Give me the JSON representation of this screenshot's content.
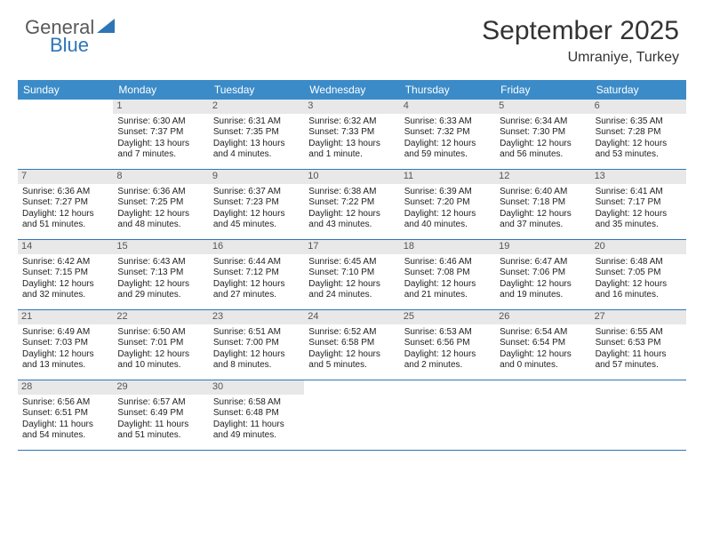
{
  "logo": {
    "general": "General",
    "blue": "Blue"
  },
  "title": "September 2025",
  "location": "Umraniye, Turkey",
  "dow": [
    "Sunday",
    "Monday",
    "Tuesday",
    "Wednesday",
    "Thursday",
    "Friday",
    "Saturday"
  ],
  "colors": {
    "header_bar": "#3b8bc8",
    "week_divider": "#2e75b6",
    "daynum_bg": "#e8e8e8",
    "logo_gray": "#58595b",
    "logo_blue": "#2e75b6"
  },
  "weeks": [
    [
      {
        "n": "",
        "sr": "",
        "ss": "",
        "dl": ""
      },
      {
        "n": "1",
        "sr": "Sunrise: 6:30 AM",
        "ss": "Sunset: 7:37 PM",
        "dl": "Daylight: 13 hours and 7 minutes."
      },
      {
        "n": "2",
        "sr": "Sunrise: 6:31 AM",
        "ss": "Sunset: 7:35 PM",
        "dl": "Daylight: 13 hours and 4 minutes."
      },
      {
        "n": "3",
        "sr": "Sunrise: 6:32 AM",
        "ss": "Sunset: 7:33 PM",
        "dl": "Daylight: 13 hours and 1 minute."
      },
      {
        "n": "4",
        "sr": "Sunrise: 6:33 AM",
        "ss": "Sunset: 7:32 PM",
        "dl": "Daylight: 12 hours and 59 minutes."
      },
      {
        "n": "5",
        "sr": "Sunrise: 6:34 AM",
        "ss": "Sunset: 7:30 PM",
        "dl": "Daylight: 12 hours and 56 minutes."
      },
      {
        "n": "6",
        "sr": "Sunrise: 6:35 AM",
        "ss": "Sunset: 7:28 PM",
        "dl": "Daylight: 12 hours and 53 minutes."
      }
    ],
    [
      {
        "n": "7",
        "sr": "Sunrise: 6:36 AM",
        "ss": "Sunset: 7:27 PM",
        "dl": "Daylight: 12 hours and 51 minutes."
      },
      {
        "n": "8",
        "sr": "Sunrise: 6:36 AM",
        "ss": "Sunset: 7:25 PM",
        "dl": "Daylight: 12 hours and 48 minutes."
      },
      {
        "n": "9",
        "sr": "Sunrise: 6:37 AM",
        "ss": "Sunset: 7:23 PM",
        "dl": "Daylight: 12 hours and 45 minutes."
      },
      {
        "n": "10",
        "sr": "Sunrise: 6:38 AM",
        "ss": "Sunset: 7:22 PM",
        "dl": "Daylight: 12 hours and 43 minutes."
      },
      {
        "n": "11",
        "sr": "Sunrise: 6:39 AM",
        "ss": "Sunset: 7:20 PM",
        "dl": "Daylight: 12 hours and 40 minutes."
      },
      {
        "n": "12",
        "sr": "Sunrise: 6:40 AM",
        "ss": "Sunset: 7:18 PM",
        "dl": "Daylight: 12 hours and 37 minutes."
      },
      {
        "n": "13",
        "sr": "Sunrise: 6:41 AM",
        "ss": "Sunset: 7:17 PM",
        "dl": "Daylight: 12 hours and 35 minutes."
      }
    ],
    [
      {
        "n": "14",
        "sr": "Sunrise: 6:42 AM",
        "ss": "Sunset: 7:15 PM",
        "dl": "Daylight: 12 hours and 32 minutes."
      },
      {
        "n": "15",
        "sr": "Sunrise: 6:43 AM",
        "ss": "Sunset: 7:13 PM",
        "dl": "Daylight: 12 hours and 29 minutes."
      },
      {
        "n": "16",
        "sr": "Sunrise: 6:44 AM",
        "ss": "Sunset: 7:12 PM",
        "dl": "Daylight: 12 hours and 27 minutes."
      },
      {
        "n": "17",
        "sr": "Sunrise: 6:45 AM",
        "ss": "Sunset: 7:10 PM",
        "dl": "Daylight: 12 hours and 24 minutes."
      },
      {
        "n": "18",
        "sr": "Sunrise: 6:46 AM",
        "ss": "Sunset: 7:08 PM",
        "dl": "Daylight: 12 hours and 21 minutes."
      },
      {
        "n": "19",
        "sr": "Sunrise: 6:47 AM",
        "ss": "Sunset: 7:06 PM",
        "dl": "Daylight: 12 hours and 19 minutes."
      },
      {
        "n": "20",
        "sr": "Sunrise: 6:48 AM",
        "ss": "Sunset: 7:05 PM",
        "dl": "Daylight: 12 hours and 16 minutes."
      }
    ],
    [
      {
        "n": "21",
        "sr": "Sunrise: 6:49 AM",
        "ss": "Sunset: 7:03 PM",
        "dl": "Daylight: 12 hours and 13 minutes."
      },
      {
        "n": "22",
        "sr": "Sunrise: 6:50 AM",
        "ss": "Sunset: 7:01 PM",
        "dl": "Daylight: 12 hours and 10 minutes."
      },
      {
        "n": "23",
        "sr": "Sunrise: 6:51 AM",
        "ss": "Sunset: 7:00 PM",
        "dl": "Daylight: 12 hours and 8 minutes."
      },
      {
        "n": "24",
        "sr": "Sunrise: 6:52 AM",
        "ss": "Sunset: 6:58 PM",
        "dl": "Daylight: 12 hours and 5 minutes."
      },
      {
        "n": "25",
        "sr": "Sunrise: 6:53 AM",
        "ss": "Sunset: 6:56 PM",
        "dl": "Daylight: 12 hours and 2 minutes."
      },
      {
        "n": "26",
        "sr": "Sunrise: 6:54 AM",
        "ss": "Sunset: 6:54 PM",
        "dl": "Daylight: 12 hours and 0 minutes."
      },
      {
        "n": "27",
        "sr": "Sunrise: 6:55 AM",
        "ss": "Sunset: 6:53 PM",
        "dl": "Daylight: 11 hours and 57 minutes."
      }
    ],
    [
      {
        "n": "28",
        "sr": "Sunrise: 6:56 AM",
        "ss": "Sunset: 6:51 PM",
        "dl": "Daylight: 11 hours and 54 minutes."
      },
      {
        "n": "29",
        "sr": "Sunrise: 6:57 AM",
        "ss": "Sunset: 6:49 PM",
        "dl": "Daylight: 11 hours and 51 minutes."
      },
      {
        "n": "30",
        "sr": "Sunrise: 6:58 AM",
        "ss": "Sunset: 6:48 PM",
        "dl": "Daylight: 11 hours and 49 minutes."
      },
      {
        "n": "",
        "sr": "",
        "ss": "",
        "dl": ""
      },
      {
        "n": "",
        "sr": "",
        "ss": "",
        "dl": ""
      },
      {
        "n": "",
        "sr": "",
        "ss": "",
        "dl": ""
      },
      {
        "n": "",
        "sr": "",
        "ss": "",
        "dl": ""
      }
    ]
  ]
}
